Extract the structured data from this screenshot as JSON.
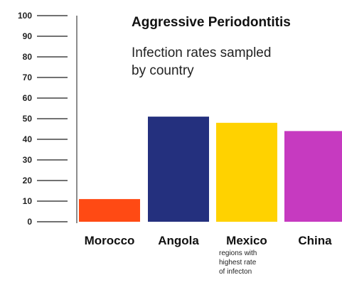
{
  "chart_data": {
    "type": "bar",
    "title": "Aggressive Periodontitis",
    "subtitle_lines": [
      "Infection rates sampled",
      "by country"
    ],
    "categories": [
      "Morocco",
      "Angola",
      "Mexico",
      "China"
    ],
    "values": [
      11,
      51,
      48,
      44
    ],
    "colors": [
      "#ff4a14",
      "#24307e",
      "#ffd200",
      "#c63ac0"
    ],
    "category_notes": [
      "",
      "",
      "regions with highest rate of infecton",
      ""
    ],
    "category_note_lines": [
      [],
      [],
      [
        "regions with",
        "highest rate",
        "of infecton"
      ],
      []
    ],
    "yticks": [
      0,
      10,
      20,
      30,
      40,
      50,
      60,
      70,
      80,
      90,
      100
    ],
    "ylim": [
      0,
      100
    ],
    "xlabel": "",
    "ylabel": "",
    "grid": false,
    "legend": "none"
  }
}
